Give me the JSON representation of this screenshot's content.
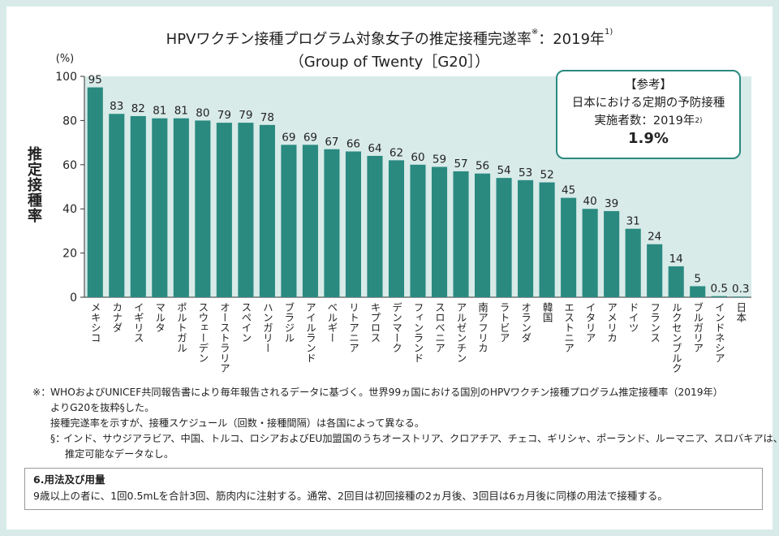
{
  "title": {
    "line1_main": "HPVワクチン接種プログラム対象女子の推定接種完遂率",
    "line1_mark": "※",
    "line1_tail": "：2019年",
    "line1_sup": "1)",
    "line2": "（Group of Twenty［G20］）"
  },
  "reference_box": {
    "heading": "【参考】",
    "line1": "日本における定期の予防接種",
    "line2_main": "実施者数：2019年",
    "line2_sup": "2)",
    "value": "1.9%"
  },
  "footnotes": {
    "mark": "※：",
    "line1": "WHOおよびUNICEF共同報告書により毎年報告されるデータに基づく。世界99ヵ国における国別のHPVワクチン接種プログラム推定接種率（2019年）",
    "line2": "よりG20を抜粋§した。",
    "line3": "接種完遂率を示すが、接種スケジュール（回数・接種間隔）は各国によって異なる。",
    "sub_mark": "§：",
    "line4": "インド、サウジアラビア、中国、トルコ、ロシアおよびEU加盟国のうちオーストリア、クロアチア、チェコ、ギリシャ、ポーランド、ルーマニア、スロバキアは、",
    "line5": "推定可能なデータなし。"
  },
  "dosage": {
    "heading": "6.用法及び用量",
    "text": "9歳以上の者に、1回0.5mLを合計3回、筋肉内に注射する。通常、2回目は初回接種の2ヵ月後、3回目は6ヵ月後に同様の用法で接種する。"
  },
  "colors": {
    "bar": "#2a8a80",
    "plot_bg": "#d8ebe9",
    "page_bg": "#d8ebe9",
    "box_border": "#2a8a80"
  },
  "chart_data": {
    "type": "bar",
    "ylabel": "推定接種率",
    "yunit": "(%)",
    "ylim": [
      0,
      100
    ],
    "yticks": [
      "0",
      "20",
      "40",
      "60",
      "80",
      "100"
    ],
    "categories": [
      "メキシコ",
      "カナダ",
      "イギリス",
      "マルタ",
      "ポルトガル",
      "スウェーデン",
      "オーストラリア",
      "スペイン",
      "ハンガリー",
      "ブラジル",
      "アイルランド",
      "ベルギー",
      "リトアニア",
      "キプロス",
      "デンマーク",
      "フィンランド",
      "スロベニア",
      "アルゼンチン",
      "南アフリカ",
      "ラトビア",
      "オランダ",
      "韓国",
      "エストニア",
      "イタリア",
      "アメリカ",
      "ドイツ",
      "フランス",
      "ルクセンブルク",
      "ブルガリア",
      "インドネシア",
      "日本"
    ],
    "values": [
      95,
      83,
      82,
      81,
      81,
      80,
      79,
      79,
      78,
      69,
      69,
      67,
      66,
      64,
      62,
      60,
      59,
      57,
      56,
      54,
      53,
      52,
      45,
      40,
      39,
      31,
      24,
      14,
      5,
      0.5,
      0.3
    ],
    "value_labels": [
      "95",
      "83",
      "82",
      "81",
      "81",
      "80",
      "79",
      "79",
      "78",
      "69",
      "69",
      "67",
      "66",
      "64",
      "62",
      "60",
      "59",
      "57",
      "56",
      "54",
      "53",
      "52",
      "45",
      "40",
      "39",
      "31",
      "24",
      "14",
      "5",
      "0.5",
      "0.3"
    ],
    "grid": false,
    "legend": "none"
  }
}
